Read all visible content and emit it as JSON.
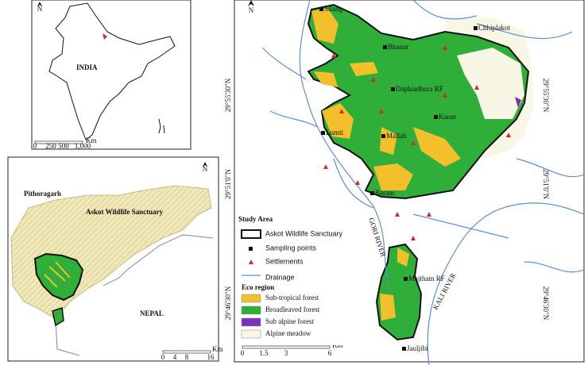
{
  "inset_india": {
    "label": "INDIA",
    "north": "N",
    "scale": [
      "0",
      "250",
      "500",
      "1,000"
    ],
    "scale_unit": "Km"
  },
  "inset_region": {
    "district": "Pithoragarh",
    "sanctuary": "Askot Wildlife Sanctuary",
    "country": "NEPAL",
    "north": "N",
    "scale": [
      "0",
      "4",
      "8",
      "16"
    ],
    "scale_unit": "Km"
  },
  "main_map": {
    "north": "N",
    "places": [
      "Silang",
      "Bhanar",
      "Chhiplakot",
      "Daphiadhura RF",
      "Kanar",
      "Lumti",
      "Mallah",
      "Baram",
      "Majtham RF",
      "Jauljibi"
    ],
    "rivers": [
      "GORI RIVER",
      "KALI RIVER"
    ],
    "lat_labels": [
      "29°55'30\"N",
      "29°51'0\"N",
      "29°46'30\"N"
    ],
    "scale": [
      "0",
      "1.5",
      "3",
      "6"
    ],
    "scale_unit": "Km"
  },
  "legend": {
    "title": "Study Area",
    "items": [
      "Askot Wildlife Sanctuary",
      "Sampling points",
      "Settlements",
      "Drainage"
    ],
    "eco_title": "Eco region",
    "eco_items": [
      {
        "label": "Sub-tropical forest",
        "color": "#f3c02b"
      },
      {
        "label": "Broadleaved forest",
        "color": "#2fae3a"
      },
      {
        "label": "Sub alpine forest",
        "color": "#7a33b8"
      },
      {
        "label": "Alpine meadow",
        "color": "#f8f6e4"
      }
    ]
  }
}
